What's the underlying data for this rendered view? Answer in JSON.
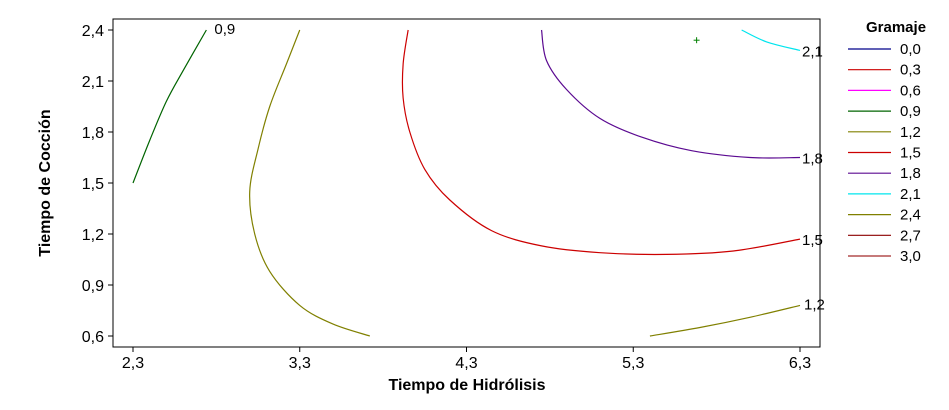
{
  "chart_data": {
    "type": "contour",
    "xlabel": "Tiempo de Hidrólisis",
    "ylabel": "Tiempo de Cocción",
    "xlim": [
      2.3,
      6.3
    ],
    "ylim": [
      0.6,
      2.4
    ],
    "x_ticks": [
      "2,3",
      "3,3",
      "4,3",
      "5,3",
      "6,3"
    ],
    "y_ticks": [
      "0,6",
      "0,9",
      "1,2",
      "1,5",
      "1,8",
      "2,1",
      "2,4"
    ],
    "legend_title": "Gramaje",
    "legend_placement": "right",
    "levels": [
      {
        "label": "0,0",
        "value": 0.0,
        "color": "#00008b"
      },
      {
        "label": "0,3",
        "value": 0.3,
        "color": "#cc0000"
      },
      {
        "label": "0,6",
        "value": 0.6,
        "color": "#ff00ff"
      },
      {
        "label": "0,9",
        "value": 0.9,
        "color": "#006400"
      },
      {
        "label": "1,2",
        "value": 1.2,
        "color": "#808000"
      },
      {
        "label": "1,5",
        "value": 1.5,
        "color": "#cc0000"
      },
      {
        "label": "1,8",
        "value": 1.8,
        "color": "#5b0a91"
      },
      {
        "label": "2,1",
        "value": 2.1,
        "color": "#00e5ee"
      },
      {
        "label": "2,4",
        "value": 2.4,
        "color": "#808000"
      },
      {
        "label": "2,7",
        "value": 2.7,
        "color": "#8b0000"
      },
      {
        "label": "3,0",
        "value": 3.0,
        "color": "#a52a2a"
      }
    ],
    "contours": [
      {
        "level": "0,9",
        "label": "0,9",
        "color": "#006400",
        "points": [
          [
            2.3,
            1.5
          ],
          [
            2.4,
            1.75
          ],
          [
            2.5,
            1.98
          ],
          [
            2.6,
            2.16
          ],
          [
            2.74,
            2.4
          ]
        ]
      },
      {
        "level": "1,2",
        "label": "",
        "color": "#808000",
        "points": [
          [
            3.3,
            2.4
          ],
          [
            3.22,
            2.2
          ],
          [
            3.12,
            1.95
          ],
          [
            3.05,
            1.7
          ],
          [
            3.0,
            1.45
          ],
          [
            3.03,
            1.2
          ],
          [
            3.12,
            0.98
          ],
          [
            3.3,
            0.78
          ],
          [
            3.5,
            0.67
          ],
          [
            3.72,
            0.6
          ]
        ]
      },
      {
        "level": "1,2",
        "label": "1,2",
        "color": "#808000",
        "points": [
          [
            5.4,
            0.6
          ],
          [
            5.7,
            0.65
          ],
          [
            6.0,
            0.71
          ],
          [
            6.3,
            0.78
          ]
        ]
      },
      {
        "level": "1,5",
        "label": "1,5",
        "color": "#cc0000",
        "points": [
          [
            3.95,
            2.4
          ],
          [
            3.92,
            2.2
          ],
          [
            3.92,
            2.0
          ],
          [
            3.96,
            1.8
          ],
          [
            4.05,
            1.58
          ],
          [
            4.2,
            1.4
          ],
          [
            4.45,
            1.22
          ],
          [
            4.75,
            1.13
          ],
          [
            5.1,
            1.09
          ],
          [
            5.5,
            1.08
          ],
          [
            5.9,
            1.1
          ],
          [
            6.3,
            1.17
          ]
        ]
      },
      {
        "level": "1,8",
        "label": "1,8",
        "color": "#5b0a91",
        "points": [
          [
            4.75,
            2.4
          ],
          [
            4.78,
            2.22
          ],
          [
            4.9,
            2.05
          ],
          [
            5.1,
            1.88
          ],
          [
            5.35,
            1.77
          ],
          [
            5.65,
            1.69
          ],
          [
            6.0,
            1.65
          ],
          [
            6.3,
            1.65
          ]
        ]
      },
      {
        "level": "2,1",
        "label": "2,1",
        "color": "#00e5ee",
        "points": [
          [
            5.95,
            2.4
          ],
          [
            6.1,
            2.33
          ],
          [
            6.3,
            2.28
          ]
        ]
      }
    ],
    "marker": {
      "x": 5.68,
      "y": 2.34,
      "symbol": "+"
    }
  }
}
